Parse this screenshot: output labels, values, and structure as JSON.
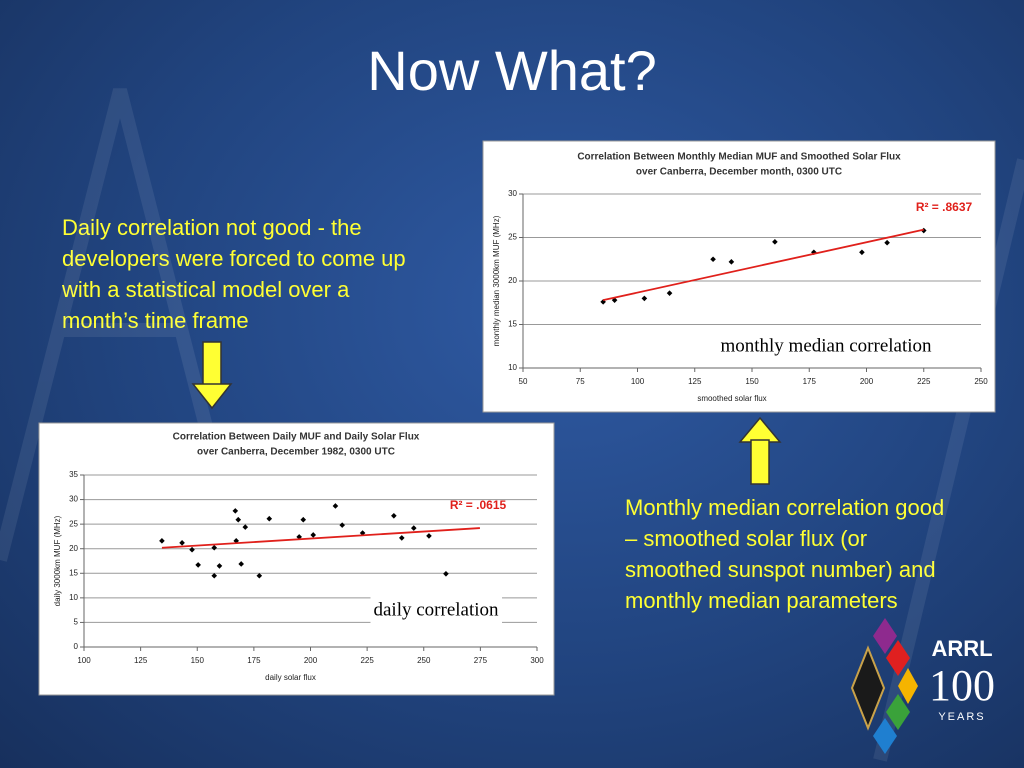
{
  "slide": {
    "title": "Now What?",
    "left_text": "Daily correlation not good - the developers were forced to come up with a statistical model over a month’s time frame",
    "right_text": "Monthly median correlation good – smoothed solar flux (or smoothed sunspot number) and monthly median parameters",
    "logo_name": "ARRL",
    "logo_number": "100",
    "logo_years": "YEARS"
  },
  "chart_data": [
    {
      "type": "scatter",
      "title": "Correlation Between Monthly Median MUF and Smoothed Solar Flux",
      "subtitle": "over Canberra, December month, 0300 UTC",
      "x_label": "smoothed solar flux",
      "y_label": "monthly median 3000km MUF (MHz)",
      "annotation": "R² = .8637",
      "caption": "monthly median correlation",
      "xlim": [
        50,
        250
      ],
      "xticks": [
        50,
        75,
        100,
        125,
        150,
        175,
        200,
        225,
        250
      ],
      "ylim": [
        10,
        30
      ],
      "yticks": [
        10,
        15,
        20,
        25,
        30
      ],
      "grid": true,
      "color": "#000000",
      "trend_color": "#e0201b",
      "x": [
        85,
        90,
        103,
        114,
        133,
        141,
        160,
        177,
        198,
        209,
        225
      ],
      "values": [
        17.6,
        17.8,
        18.0,
        18.6,
        22.5,
        22.2,
        24.5,
        23.3,
        23.3,
        24.4,
        25.8
      ],
      "trendline": {
        "x": [
          85,
          225
        ],
        "y": [
          17.8,
          25.9
        ]
      }
    },
    {
      "type": "scatter",
      "title": "Correlation Between Daily MUF and Daily Solar Flux",
      "subtitle": "over Canberra, December 1982, 0300 UTC",
      "x_label": "daily solar flux",
      "y_label": "daily 3000km MUF (MHz)",
      "annotation": "R² = .0615",
      "caption": "daily correlation",
      "xlim": [
        100,
        300
      ],
      "xticks": [
        100,
        125,
        150,
        175,
        200,
        225,
        250,
        275,
        300
      ],
      "ylim": [
        0,
        35
      ],
      "yticks": [
        0,
        5,
        10,
        15,
        20,
        25,
        30,
        35
      ],
      "grid": true,
      "color": "#000000",
      "trend_color": "#e0201b",
      "x": [
        134.4,
        143.3,
        147.7,
        150.4,
        157.5,
        157.5,
        159.8,
        166.8,
        168.1,
        167.2,
        169.4,
        171.2,
        177.4,
        181.8,
        195,
        196.8,
        201.2,
        211,
        214,
        223,
        236.8,
        240.3,
        245.6,
        252.3,
        259.8
      ],
      "values": [
        21.6,
        21.2,
        19.8,
        16.7,
        14.5,
        20.2,
        16.5,
        27.7,
        25.9,
        21.6,
        16.9,
        24.4,
        14.5,
        26.1,
        22.4,
        25.9,
        22.8,
        28.7,
        24.8,
        23.2,
        26.7,
        22.2,
        24.2,
        22.6,
        14.9
      ],
      "trendline": {
        "x": [
          134.4,
          274.8
        ],
        "y": [
          20.2,
          24.2
        ]
      }
    }
  ]
}
